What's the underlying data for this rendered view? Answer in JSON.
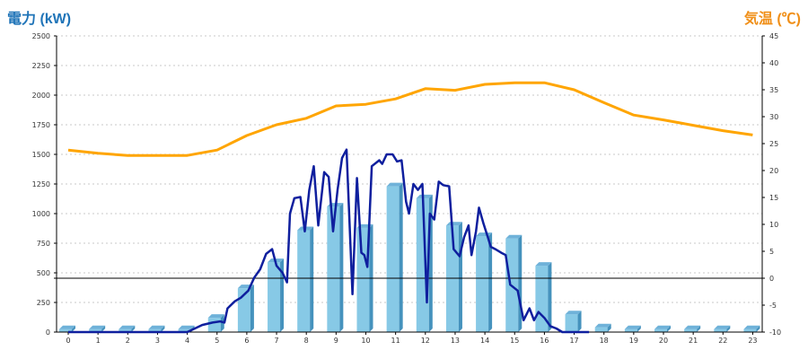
{
  "chart_data": {
    "type": "bar+line",
    "left_axis": {
      "label": "電力 (kW)",
      "ticks": [
        "2500",
        "2250",
        "2000",
        "1750",
        "1500",
        "1250",
        "1000",
        "750",
        "500",
        "250",
        "0"
      ],
      "ylim": [
        0,
        2500
      ]
    },
    "right_axis": {
      "label": "気温 (℃)",
      "ticks": [
        "45",
        "40",
        "35",
        "30",
        "25",
        "20",
        "15",
        "10",
        "5",
        "0",
        "-5",
        "-10"
      ],
      "ylim": [
        -10,
        45
      ]
    },
    "x_ticks": [
      "0",
      "1",
      "2",
      "3",
      "4",
      "5",
      "6",
      "7",
      "8",
      "9",
      "10",
      "11",
      "12",
      "13",
      "14",
      "15",
      "16",
      "17",
      "18",
      "19",
      "20",
      "21",
      "22",
      "23"
    ],
    "hourly_power_bars": [
      25,
      25,
      25,
      25,
      25,
      120,
      370,
      590,
      860,
      1060,
      880,
      1230,
      1130,
      900,
      810,
      790,
      560,
      150,
      40,
      25,
      25,
      25,
      25,
      25
    ],
    "temperature": [
      23.8,
      23.2,
      22.8,
      22.8,
      22.8,
      23.8,
      26.5,
      28.5,
      29.7,
      32,
      32.3,
      33.3,
      35.2,
      34.9,
      36,
      36.3,
      36.3,
      35,
      32.6,
      30.3,
      29.4,
      28.4,
      27.4,
      26.6
    ],
    "realtime_power": [
      [
        0,
        0
      ],
      [
        1,
        0
      ],
      [
        2,
        0
      ],
      [
        3,
        0
      ],
      [
        4,
        0
      ],
      [
        4.5,
        60
      ],
      [
        4.85,
        80
      ],
      [
        5.1,
        90
      ],
      [
        5.25,
        80
      ],
      [
        5.35,
        200
      ],
      [
        5.6,
        260
      ],
      [
        5.8,
        290
      ],
      [
        6.05,
        350
      ],
      [
        6.25,
        460
      ],
      [
        6.45,
        530
      ],
      [
        6.65,
        660
      ],
      [
        6.85,
        700
      ],
      [
        7,
        560
      ],
      [
        7.2,
        500
      ],
      [
        7.35,
        420
      ],
      [
        7.45,
        1000
      ],
      [
        7.6,
        1130
      ],
      [
        7.8,
        1140
      ],
      [
        7.95,
        850
      ],
      [
        8.1,
        1200
      ],
      [
        8.25,
        1400
      ],
      [
        8.4,
        900
      ],
      [
        8.6,
        1350
      ],
      [
        8.75,
        1310
      ],
      [
        8.9,
        850
      ],
      [
        9.05,
        1200
      ],
      [
        9.2,
        1470
      ],
      [
        9.35,
        1540
      ],
      [
        9.55,
        320
      ],
      [
        9.7,
        1300
      ],
      [
        9.85,
        670
      ],
      [
        9.95,
        650
      ],
      [
        10.05,
        550
      ],
      [
        10.2,
        1400
      ],
      [
        10.45,
        1450
      ],
      [
        10.55,
        1420
      ],
      [
        10.7,
        1500
      ],
      [
        10.9,
        1500
      ],
      [
        11.05,
        1440
      ],
      [
        11.2,
        1450
      ],
      [
        11.35,
        1100
      ],
      [
        11.45,
        1000
      ],
      [
        11.6,
        1250
      ],
      [
        11.75,
        1200
      ],
      [
        11.9,
        1250
      ],
      [
        12.05,
        250
      ],
      [
        12.15,
        1000
      ],
      [
        12.3,
        950
      ],
      [
        12.45,
        1270
      ],
      [
        12.6,
        1240
      ],
      [
        12.8,
        1230
      ],
      [
        12.95,
        700
      ],
      [
        13.15,
        640
      ],
      [
        13.3,
        800
      ],
      [
        13.45,
        900
      ],
      [
        13.55,
        650
      ],
      [
        13.7,
        850
      ],
      [
        13.8,
        1050
      ],
      [
        13.95,
        920
      ],
      [
        14.1,
        800
      ],
      [
        14.2,
        720
      ],
      [
        14.35,
        700
      ],
      [
        14.55,
        670
      ],
      [
        14.7,
        650
      ],
      [
        14.85,
        400
      ],
      [
        15.1,
        350
      ],
      [
        15.3,
        100
      ],
      [
        15.5,
        200
      ],
      [
        15.65,
        100
      ],
      [
        15.8,
        170
      ],
      [
        16,
        120
      ],
      [
        16.2,
        50
      ],
      [
        16.4,
        30
      ],
      [
        16.6,
        0
      ],
      [
        17,
        0
      ],
      [
        17.5,
        0
      ]
    ]
  },
  "colors": {
    "bar": "#87c9e6",
    "bar_dark": "#4592bd",
    "bar_top": "#6fb2d9",
    "temperature": "#ffa500",
    "power_line": "#0f1f9e",
    "left_axis_title": "#1f74b8",
    "right_axis_title": "#f08f18"
  }
}
